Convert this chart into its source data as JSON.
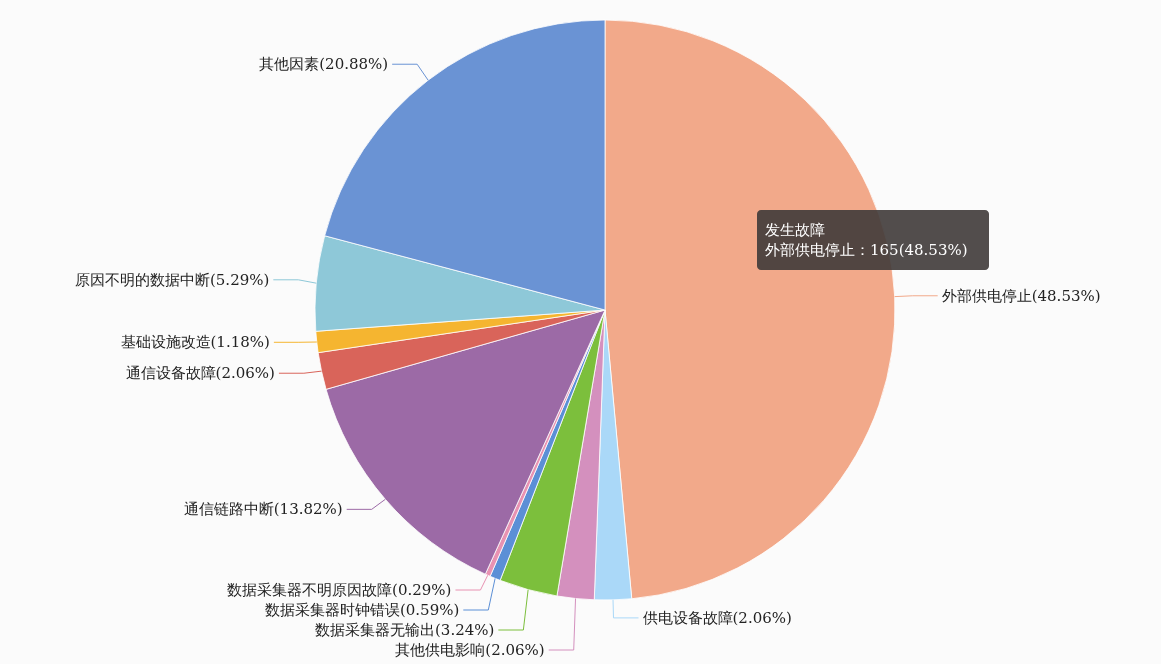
{
  "chart_data": {
    "type": "pie",
    "categories": [
      "外部供电停止",
      "供电设备故障",
      "其他供电影响",
      "数据采集器无输出",
      "数据采集器时钟错误",
      "数据采集器不明原因故障",
      "通信链路中断",
      "通信设备故障",
      "基础设施改造",
      "原因不明的数据中断",
      "其他因素"
    ],
    "values": [
      48.53,
      2.06,
      2.06,
      3.24,
      0.59,
      0.29,
      13.82,
      2.06,
      1.18,
      5.29,
      20.88
    ],
    "colors": [
      "#f2a98a",
      "#aad8f8",
      "#d490be",
      "#7cbf3c",
      "#5b8fd6",
      "#e892b2",
      "#9c6aa6",
      "#d9645a",
      "#f5b530",
      "#8ec8d8",
      "#6a93d4"
    ],
    "value_labels": [
      "(48.53%)",
      "(2.06%)",
      "(2.06%)",
      "(3.24%)",
      "(0.59%)",
      "(0.29%)",
      "(13.82%)",
      "(2.06%)",
      "(1.18%)",
      "(5.29%)",
      "(20.88%)"
    ],
    "annotations": [
      "发生故障",
      "外部供电停止：165(48.53%)"
    ]
  }
}
